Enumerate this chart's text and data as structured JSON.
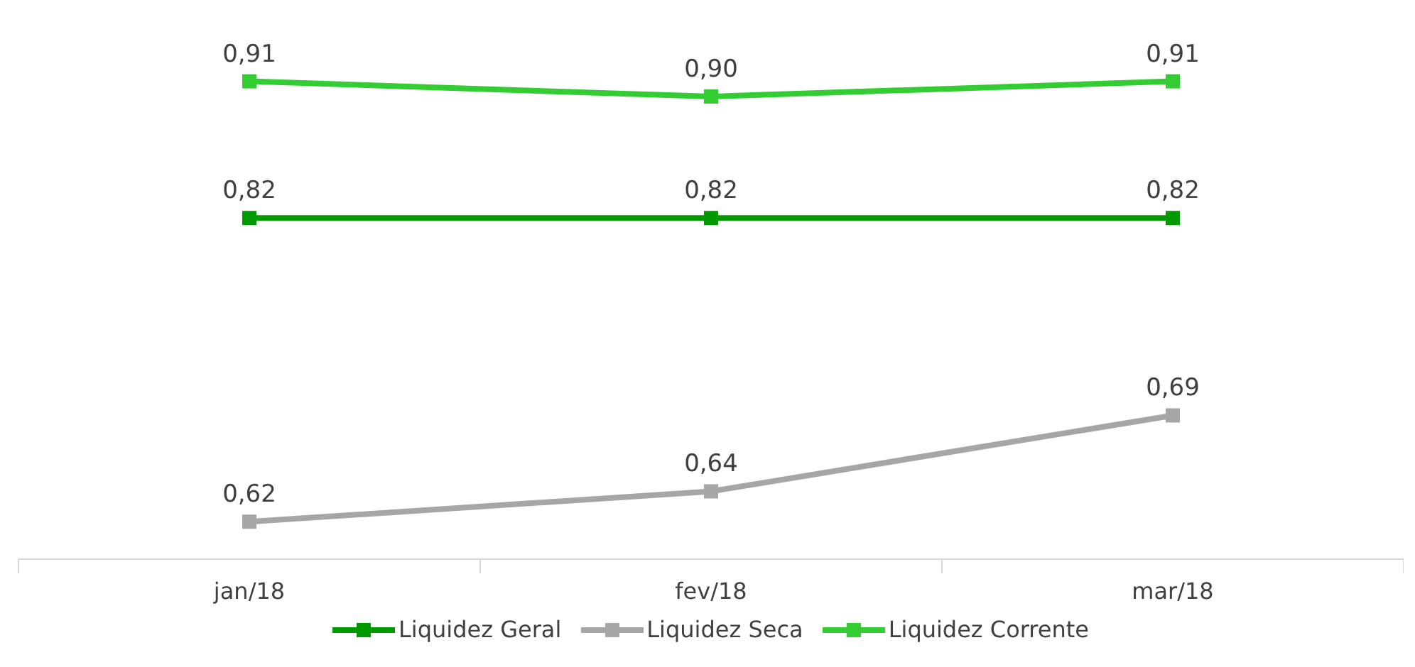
{
  "chart_data": {
    "type": "line",
    "categories": [
      "jan/18",
      "fev/18",
      "mar/18"
    ],
    "series": [
      {
        "name": "Liquidez Geral",
        "color": "#009900",
        "values": [
          0.82,
          0.82,
          0.82
        ],
        "value_labels": [
          "0,82",
          "0,82",
          "0,82"
        ]
      },
      {
        "name": "Liquidez Seca",
        "color": "#a6a6a6",
        "values": [
          0.62,
          0.64,
          0.69
        ],
        "value_labels": [
          "0,62",
          "0,64",
          "0,69"
        ]
      },
      {
        "name": "Liquidez Corrente",
        "color": "#33cc33",
        "values": [
          0.91,
          0.9,
          0.91
        ],
        "value_labels": [
          "0,91",
          "0,90",
          "0,91"
        ]
      }
    ],
    "legend": "bottom",
    "grid": false,
    "marker": "square",
    "line_style": "solid"
  }
}
